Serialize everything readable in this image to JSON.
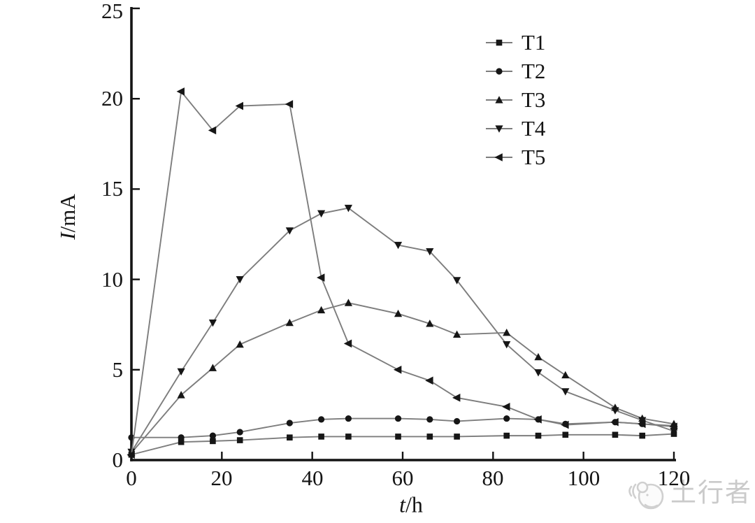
{
  "page": {
    "background": "#ffffff"
  },
  "chart_data": {
    "type": "line",
    "title": "",
    "xlabel": "t/h",
    "xlabel_italic": "t",
    "xlabel_rest": "/h",
    "ylabel": "I/mA",
    "ylabel_italic": "I",
    "ylabel_rest": "/mA",
    "xlim": [
      0,
      120
    ],
    "ylim": [
      0,
      25
    ],
    "xticks": [
      0,
      20,
      40,
      60,
      80,
      100,
      120
    ],
    "yticks": [
      0,
      5,
      10,
      15,
      20,
      25
    ],
    "xtick_labels": [
      "0",
      "20",
      "40",
      "60",
      "80",
      "100",
      "120"
    ],
    "ytick_labels": [
      "0",
      "5",
      "10",
      "15",
      "20",
      "25"
    ],
    "grid": false,
    "legend_position": "upper right",
    "line_color": "#7d7d7d",
    "marker_color": "#161616",
    "axis_color": "#141414",
    "x": [
      0,
      11,
      18,
      24,
      35,
      42,
      48,
      59,
      66,
      72,
      83,
      90,
      96,
      107,
      113,
      120
    ],
    "series": [
      {
        "name": "T1",
        "marker": "square",
        "values": [
          0.3,
          1.0,
          1.05,
          1.1,
          1.25,
          1.3,
          1.3,
          1.3,
          1.3,
          1.3,
          1.35,
          1.35,
          1.4,
          1.4,
          1.35,
          1.45
        ]
      },
      {
        "name": "T2",
        "marker": "circle",
        "values": [
          1.25,
          1.25,
          1.35,
          1.55,
          2.05,
          2.25,
          2.3,
          2.3,
          2.25,
          2.15,
          2.3,
          2.25,
          2.0,
          2.1,
          2.0,
          1.9
        ]
      },
      {
        "name": "T3",
        "marker": "triangle-up",
        "values": [
          0.4,
          3.6,
          5.1,
          6.4,
          7.6,
          8.3,
          8.7,
          8.1,
          7.55,
          6.95,
          7.05,
          5.7,
          4.7,
          2.9,
          2.3,
          2.0
        ]
      },
      {
        "name": "T4",
        "marker": "triangle-down",
        "values": [
          0.45,
          4.9,
          7.6,
          10.0,
          12.7,
          13.65,
          13.95,
          11.9,
          11.55,
          9.95,
          6.4,
          4.85,
          3.8,
          2.75,
          2.2,
          1.6
        ]
      },
      {
        "name": "T5",
        "marker": "triangle-left",
        "values": [
          0.3,
          20.4,
          18.25,
          19.6,
          19.7,
          10.1,
          6.45,
          5.0,
          4.4,
          3.45,
          2.95,
          2.25,
          1.95,
          2.1,
          2.0,
          1.85
        ]
      }
    ]
  },
  "watermark": {
    "text": "土行者",
    "color": "#c5c5c5"
  }
}
